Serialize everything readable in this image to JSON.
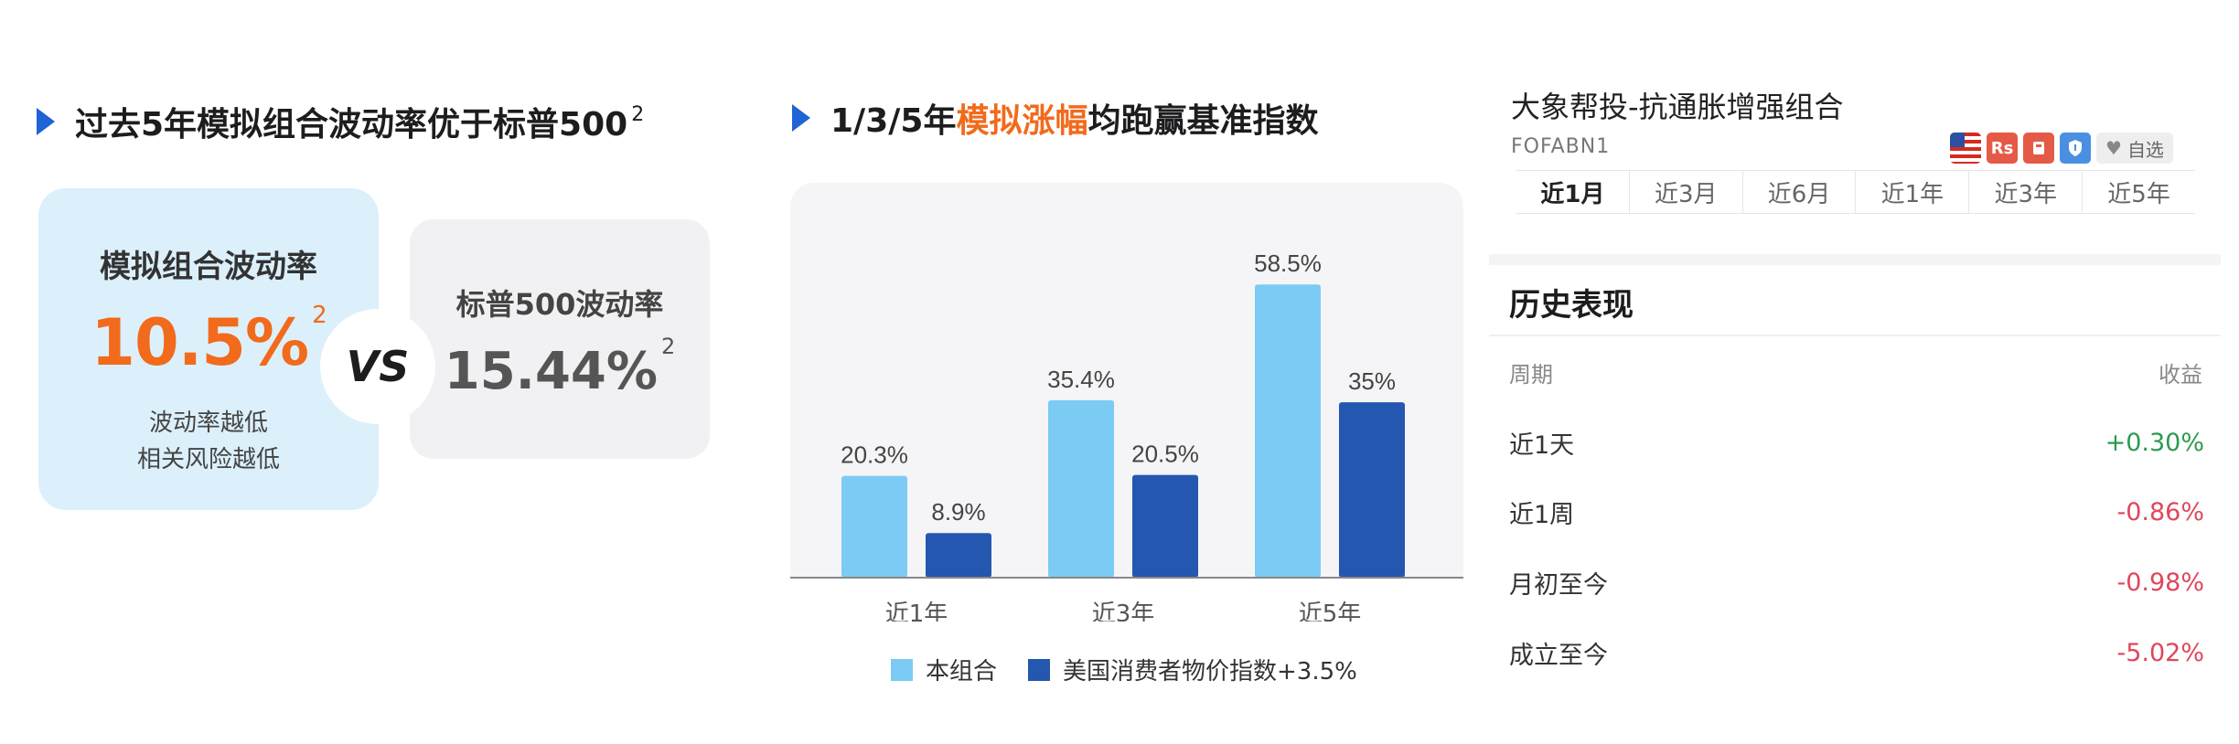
{
  "panel1": {
    "title": "过去5年模拟组合波动率优于标普500",
    "title_sup": "2",
    "card_a": {
      "label": "模拟组合波动率",
      "value": "10.5%",
      "value_sup": "2",
      "note_line1": "波动率越低",
      "note_line2": "相关风险越低"
    },
    "vs": "VS",
    "card_b": {
      "label": "标普500波动率",
      "value": "15.44%",
      "value_sup": "2"
    }
  },
  "panel2": {
    "title_part1": "1/3/5年",
    "title_highlight": "模拟涨幅",
    "title_part2": "均跑赢基准指数",
    "colors": {
      "series1": "#7ccbf4",
      "series2": "#2457b0",
      "highlight": "#f26a1b"
    }
  },
  "chart_data": {
    "type": "bar",
    "categories": [
      "近1年",
      "近3年",
      "近5年"
    ],
    "series": [
      {
        "name": "本组合",
        "values": [
          20.3,
          35.4,
          58.5
        ],
        "labels": [
          "20.3%",
          "35.4%",
          "58.5%"
        ]
      },
      {
        "name": "美国消费者物价指数+3.5%",
        "values": [
          8.9,
          20.5,
          35
        ],
        "labels": [
          "8.9%",
          "20.5%",
          "35%"
        ]
      }
    ],
    "ylim": [
      0,
      62
    ],
    "grid": false,
    "legend": "bottom"
  },
  "panel3": {
    "fund_name": "大象帮投-抗通胀增强组合",
    "fund_code": "FOFABN1",
    "badges": {
      "rs": "Rs",
      "favorite": "自选"
    },
    "tabs": [
      "近1月",
      "近3月",
      "近6月",
      "近1年",
      "近3年",
      "近5年"
    ],
    "active_tab": 0,
    "history_title": "历史表现",
    "col_period": "周期",
    "col_return": "收益",
    "rows": [
      {
        "period": "近1天",
        "ret": "+0.30%"
      },
      {
        "period": "近1周",
        "ret": "-0.86%"
      },
      {
        "period": "月初至今",
        "ret": "-0.98%"
      },
      {
        "period": "成立至今",
        "ret": "-5.02%"
      }
    ],
    "colors": {
      "positive": "#2b9b4f",
      "negative": "#e0465b"
    }
  }
}
